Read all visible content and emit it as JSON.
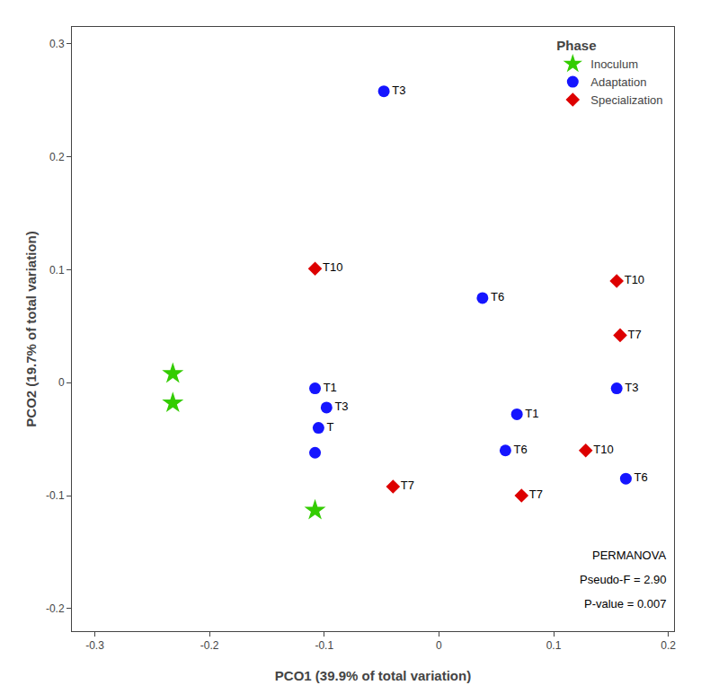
{
  "chart_data": {
    "type": "scatter",
    "xlabel": "PCO1 (39.9% of total variation)",
    "ylabel": "PCO2 (19.7% of total variation)",
    "xlim": [
      -0.32,
      0.205
    ],
    "ylim": [
      -0.22,
      0.315
    ],
    "xticks": [
      -0.3,
      -0.2,
      -0.1,
      0,
      0.1,
      0.2
    ],
    "yticks": [
      -0.2,
      -0.1,
      0,
      0.1,
      0.2,
      0.3
    ],
    "grid": false,
    "legend": "upper right",
    "legend_title": "Phase",
    "annotations": [
      "PERMANOVA",
      "Pseudo-F = 2.90",
      "P-value = 0.007"
    ],
    "series": [
      {
        "name": "Inoculum",
        "color": "#33cc00",
        "marker": "star",
        "x": [
          -0.232,
          -0.232,
          -0.108
        ],
        "values": [
          0.008,
          -0.018,
          -0.113
        ]
      },
      {
        "name": "Adaptation",
        "color": "#1515ff",
        "marker": "circle",
        "x": [
          -0.048,
          0.038,
          -0.108,
          -0.098,
          -0.105,
          -0.108,
          0.068,
          0.058,
          0.155,
          0.163
        ],
        "values": [
          0.258,
          0.075,
          -0.005,
          -0.022,
          -0.04,
          -0.062,
          -0.028,
          -0.06,
          -0.005,
          -0.085
        ],
        "labels": [
          "T3",
          "T6",
          "T1",
          "T3",
          "T",
          null,
          "T1",
          "T6",
          "T3",
          "T6"
        ]
      },
      {
        "name": "Specialization",
        "color": "#dd0000",
        "marker": "diamond",
        "x": [
          -0.108,
          -0.04,
          0.072,
          0.128,
          0.155,
          0.158
        ],
        "values": [
          0.101,
          -0.092,
          -0.1,
          -0.06,
          0.09,
          0.042
        ],
        "labels": [
          "T10",
          "T7",
          "T7",
          "T10",
          "T10",
          "T7"
        ]
      }
    ]
  }
}
